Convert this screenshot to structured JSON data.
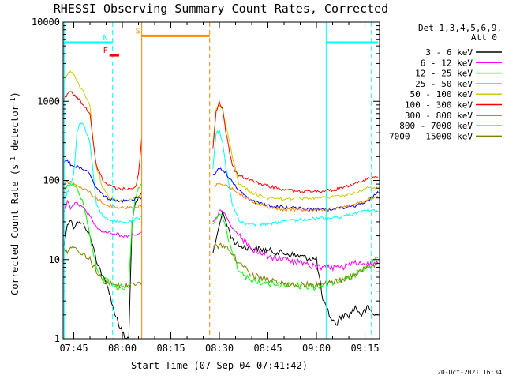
{
  "chart_data": {
    "type": "line",
    "title": "RHESSI Observing Summary Count Rates, Corrected",
    "xlabel": "Start Time (07-Sep-04 07:41:42)",
    "ylabel": "Corrected Count Rate (s⁻¹ detector⁻¹)",
    "ylabel_base": "Corrected Count Rate (s",
    "ylabel_sup1": "-1",
    "ylabel_mid": " detector",
    "ylabel_sup2": "-1",
    "ylabel_end": ")",
    "yscale": "log",
    "xlim": [
      "07:41:42",
      "09:19:30"
    ],
    "ylim": [
      1,
      10000
    ],
    "x_ticks": [
      "07:45",
      "08:00",
      "08:15",
      "08:30",
      "08:45",
      "09:00",
      "09:15"
    ],
    "y_ticks": [
      "1",
      "10",
      "100",
      "1000",
      "10000"
    ],
    "grid": false,
    "legend_placement": "top-right (outside plot)",
    "legend_header_1": "Det 1,3,4,5,6,9,",
    "legend_header_2": "Att 0",
    "series": [
      {
        "name": "3 - 6 keV",
        "color": "#000000",
        "x": [
          "07:42",
          "07:43",
          "07:44",
          "07:45",
          "07:46",
          "07:48",
          "07:50",
          "07:52",
          "07:54",
          "07:56",
          "07:57",
          "07:58",
          "07:59",
          "08:00",
          "08:01",
          "08:02",
          "08:03",
          "08:04",
          "08:05",
          "08:06",
          "08:28",
          "08:30",
          "08:31",
          "08:32",
          "08:34",
          "08:36",
          "08:40",
          "08:45",
          "08:50",
          "08:55",
          "09:00",
          "09:02",
          "09:04",
          "09:06",
          "09:08",
          "09:10",
          "09:12",
          "09:14",
          "09:16",
          "09:17",
          "09:18",
          "09:19"
        ],
        "y": [
          15,
          28,
          32,
          25,
          30,
          28,
          20,
          10,
          6,
          4,
          2.5,
          2,
          1.5,
          1.2,
          1,
          1,
          30,
          50,
          60,
          70,
          12,
          28,
          40,
          30,
          18,
          15,
          14,
          13,
          12,
          11,
          10,
          3,
          2,
          1.5,
          2,
          2,
          2.5,
          2,
          2.5,
          2.2,
          2,
          2
        ]
      },
      {
        "name": "6 - 12 keV",
        "color": "#ff00ff",
        "x": [
          "07:42",
          "07:43",
          "07:44",
          "07:45",
          "07:46",
          "07:48",
          "07:50",
          "07:52",
          "07:54",
          "07:56",
          "07:58",
          "08:00",
          "08:02",
          "08:04",
          "08:06",
          "08:28",
          "08:30",
          "08:31",
          "08:32",
          "08:34",
          "08:36",
          "08:40",
          "08:45",
          "08:50",
          "08:55",
          "09:00",
          "09:04",
          "09:08",
          "09:12",
          "09:16",
          "09:19"
        ],
        "y": [
          40,
          55,
          45,
          50,
          52,
          45,
          35,
          25,
          22,
          22,
          21,
          20,
          20,
          21,
          22,
          30,
          40,
          42,
          35,
          25,
          20,
          14,
          11,
          10,
          9,
          8,
          8,
          8,
          9,
          9,
          9
        ]
      },
      {
        "name": "12 - 25 keV",
        "color": "#00ff00",
        "x": [
          "07:42",
          "07:43",
          "07:44",
          "07:45",
          "07:46",
          "07:48",
          "07:50",
          "07:52",
          "07:54",
          "07:56",
          "07:58",
          "08:00",
          "08:02",
          "08:03",
          "08:04",
          "08:05",
          "08:06",
          "08:28",
          "08:30",
          "08:31",
          "08:32",
          "08:34",
          "08:36",
          "08:40",
          "08:45",
          "08:50",
          "08:55",
          "09:00",
          "09:04",
          "09:08",
          "09:12",
          "09:16",
          "09:19"
        ],
        "y": [
          70,
          85,
          90,
          88,
          80,
          50,
          20,
          8,
          6,
          5,
          4.5,
          4.5,
          4.5,
          30,
          60,
          80,
          90,
          28,
          38,
          35,
          25,
          12,
          7,
          5.5,
          5,
          4.8,
          4.6,
          4.5,
          5,
          5.5,
          6.5,
          8,
          11
        ]
      },
      {
        "name": "25 - 50 keV",
        "color": "#00ffff",
        "x": [
          "07:42",
          "07:43",
          "07:44",
          "07:45",
          "07:46",
          "07:47",
          "07:48",
          "07:50",
          "07:52",
          "07:54",
          "07:56",
          "07:58",
          "08:00",
          "08:02",
          "08:04",
          "08:06",
          "08:28",
          "08:29",
          "08:30",
          "08:31",
          "08:32",
          "08:34",
          "08:36",
          "08:38",
          "08:40",
          "08:45",
          "08:50",
          "08:55",
          "09:00",
          "09:04",
          "09:08",
          "09:12",
          "09:16",
          "09:19"
        ],
        "y": [
          60,
          70,
          90,
          120,
          400,
          550,
          500,
          300,
          50,
          35,
          32,
          30,
          30,
          30,
          32,
          35,
          140,
          400,
          420,
          300,
          150,
          50,
          32,
          28,
          28,
          28,
          30,
          32,
          33,
          33,
          35,
          38,
          42,
          40
        ]
      },
      {
        "name": "50 - 100 keV",
        "color": "#cccc00",
        "x": [
          "07:42",
          "07:43",
          "07:44",
          "07:45",
          "07:46",
          "07:47",
          "07:48",
          "07:50",
          "07:51",
          "07:52",
          "07:54",
          "07:56",
          "07:58",
          "08:00",
          "08:02",
          "08:04",
          "08:06",
          "08:28",
          "08:29",
          "08:30",
          "08:31",
          "08:32",
          "08:34",
          "08:36",
          "08:40",
          "08:45",
          "08:50",
          "08:55",
          "09:00",
          "09:04",
          "09:08",
          "09:12",
          "09:16",
          "09:19"
        ],
        "y": [
          1800,
          2200,
          2400,
          2200,
          1800,
          1500,
          1300,
          900,
          300,
          150,
          80,
          60,
          55,
          55,
          56,
          60,
          65,
          300,
          800,
          900,
          800,
          500,
          200,
          90,
          70,
          60,
          58,
          60,
          60,
          62,
          65,
          70,
          80,
          82
        ]
      },
      {
        "name": "100 - 300 keV",
        "color": "#ff0000",
        "x": [
          "07:42",
          "07:43",
          "07:44",
          "07:45",
          "07:46",
          "07:47",
          "07:48",
          "07:50",
          "07:51",
          "07:52",
          "07:54",
          "07:56",
          "07:58",
          "08:00",
          "08:02",
          "08:04",
          "08:05",
          "08:06",
          "08:28",
          "08:29",
          "08:30",
          "08:31",
          "08:32",
          "08:34",
          "08:36",
          "08:40",
          "08:45",
          "08:50",
          "08:55",
          "09:00",
          "09:04",
          "09:08",
          "09:12",
          "09:16",
          "09:19"
        ],
        "y": [
          1050,
          1250,
          1350,
          1200,
          1100,
          1000,
          900,
          700,
          300,
          150,
          100,
          85,
          80,
          78,
          78,
          80,
          120,
          350,
          250,
          750,
          950,
          800,
          400,
          150,
          115,
          100,
          85,
          76,
          72,
          72,
          75,
          80,
          90,
          105,
          115
        ]
      },
      {
        "name": "300 - 800 keV",
        "color": "#0000ff",
        "x": [
          "07:42",
          "07:43",
          "07:44",
          "07:45",
          "07:46",
          "07:48",
          "07:50",
          "07:52",
          "07:54",
          "07:56",
          "07:58",
          "08:00",
          "08:02",
          "08:04",
          "08:06",
          "08:28",
          "08:30",
          "08:32",
          "08:34",
          "08:36",
          "08:40",
          "08:45",
          "08:50",
          "08:55",
          "09:00",
          "09:04",
          "09:08",
          "09:12",
          "09:16",
          "09:19"
        ],
        "y": [
          170,
          180,
          160,
          150,
          150,
          140,
          120,
          80,
          65,
          58,
          55,
          55,
          56,
          58,
          60,
          120,
          140,
          125,
          95,
          75,
          55,
          48,
          46,
          44,
          43,
          43,
          45,
          48,
          55,
          72
        ]
      },
      {
        "name": "800 - 7000 keV",
        "color": "#ff8800",
        "x": [
          "07:42",
          "07:43",
          "07:44",
          "07:45",
          "07:46",
          "07:48",
          "07:50",
          "07:52",
          "07:54",
          "07:56",
          "07:58",
          "08:00",
          "08:02",
          "08:04",
          "08:06",
          "08:28",
          "08:30",
          "08:32",
          "08:34",
          "08:36",
          "08:40",
          "08:45",
          "08:50",
          "08:55",
          "09:00",
          "09:04",
          "09:08",
          "09:12",
          "09:16",
          "09:19"
        ],
        "y": [
          90,
          95,
          95,
          90,
          85,
          80,
          70,
          60,
          52,
          48,
          46,
          45,
          45,
          46,
          48,
          85,
          90,
          88,
          78,
          68,
          55,
          46,
          43,
          42,
          42,
          43,
          45,
          50,
          58,
          65
        ]
      },
      {
        "name": "7000 - 15000 keV",
        "color": "#808000",
        "x": [
          "07:42",
          "07:43",
          "07:44",
          "07:45",
          "07:46",
          "07:48",
          "07:50",
          "07:52",
          "07:54",
          "07:56",
          "07:58",
          "08:00",
          "08:02",
          "08:04",
          "08:06",
          "08:28",
          "08:30",
          "08:32",
          "08:34",
          "08:36",
          "08:40",
          "08:45",
          "08:50",
          "08:55",
          "09:00",
          "09:04",
          "09:08",
          "09:12",
          "09:16",
          "09:19"
        ],
        "y": [
          14,
          13,
          14,
          14,
          13,
          12,
          10,
          7,
          5.5,
          5,
          4.8,
          4.7,
          4.8,
          5,
          5,
          15,
          15,
          14,
          12,
          9,
          6.5,
          5.5,
          5,
          4.8,
          4.8,
          5,
          5.5,
          6.5,
          8,
          9
        ]
      }
    ],
    "annotations": {
      "labels": [
        "N",
        "F",
        "S"
      ],
      "intervals": [
        {
          "label": "",
          "color": "#00ffff",
          "start": "07:42",
          "end": "07:57",
          "level": 5500
        },
        {
          "label": "N",
          "color": "#00ffff",
          "start": "07:56",
          "end": "07:56",
          "level": 5500
        },
        {
          "label": "F",
          "color": "#ff0000",
          "start": "07:56",
          "end": "07:59",
          "level": 3800
        },
        {
          "label": "S",
          "color": "#ff8800",
          "start": "08:06",
          "end": "08:27",
          "level": 6700
        },
        {
          "label": "",
          "color": "#00ffff",
          "start": "09:03",
          "end": "09:19",
          "level": 5500
        }
      ],
      "vlines": [
        {
          "time": "07:42",
          "color": "#00ffff",
          "style": "solid"
        },
        {
          "time": "07:57",
          "color": "#00ffff",
          "style": "dashed"
        },
        {
          "time": "08:06",
          "color": "#ff8800",
          "style": "solid"
        },
        {
          "time": "08:27",
          "color": "#ff8800",
          "style": "dashed"
        },
        {
          "time": "09:03",
          "color": "#00ffff",
          "style": "solid"
        },
        {
          "time": "09:17",
          "color": "#00ffff",
          "style": "dashed"
        }
      ]
    }
  },
  "timestamp": "20-Oct-2021 16:34"
}
